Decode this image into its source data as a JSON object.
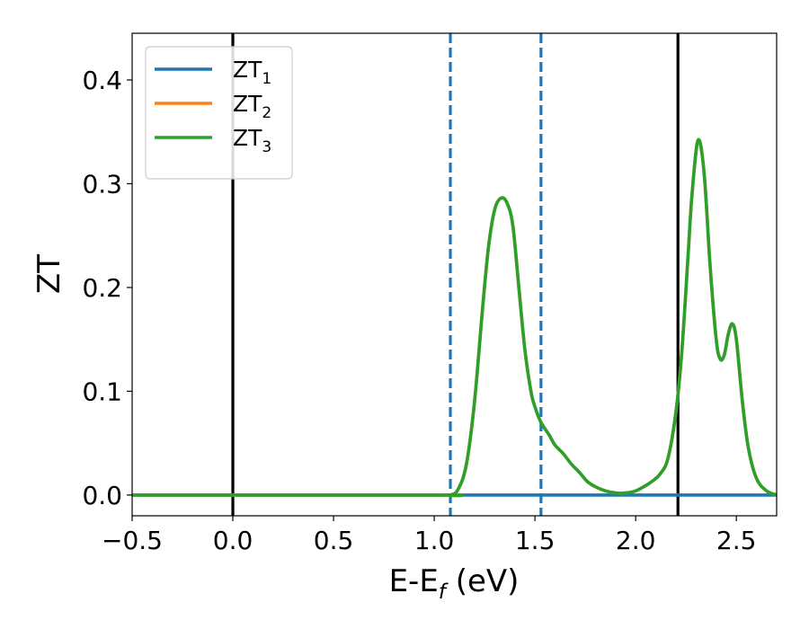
{
  "chart_data": {
    "type": "line",
    "title": "",
    "xlabel_main": "E-E",
    "xlabel_sub": "f",
    "xlabel_unit": " (eV)",
    "ylabel": "ZT",
    "xlim": [
      -0.5,
      2.7
    ],
    "ylim": [
      -0.02,
      0.445
    ],
    "xticks": [
      -0.5,
      0.0,
      0.5,
      1.0,
      1.5,
      2.0,
      2.5
    ],
    "xtick_labels": [
      "−0.5",
      "0.0",
      "0.5",
      "1.0",
      "1.5",
      "2.0",
      "2.5"
    ],
    "yticks": [
      0.0,
      0.1,
      0.2,
      0.3,
      0.4
    ],
    "ytick_labels": [
      "0.0",
      "0.1",
      "0.2",
      "0.3",
      "0.4"
    ],
    "grid": false,
    "legend_position": "top-left",
    "vlines": [
      {
        "x": 0.0,
        "style": "solid",
        "color": "#000000"
      },
      {
        "x": 2.21,
        "style": "solid",
        "color": "#000000"
      },
      {
        "x": 1.08,
        "style": "dashed",
        "color": "#1f77b4"
      },
      {
        "x": 1.53,
        "style": "dashed",
        "color": "#1f77b4"
      }
    ],
    "series": [
      {
        "name": "ZT",
        "sub": "1",
        "color": "#1f77b4",
        "x": [
          -0.5,
          2.7
        ],
        "y": [
          0.0,
          0.0
        ]
      },
      {
        "name": "ZT",
        "sub": "2",
        "color": "#ff7f0e",
        "x": [
          -0.5,
          1.0,
          1.08,
          1.12,
          1.16,
          1.2,
          1.24,
          1.27,
          1.3,
          1.33,
          1.36,
          1.39,
          1.42,
          1.45,
          1.48,
          1.5,
          1.53,
          1.57,
          1.6,
          1.64,
          1.68,
          1.72,
          1.76,
          1.8,
          1.85,
          1.9,
          1.95,
          2.0,
          2.04,
          2.08,
          2.12,
          2.16,
          2.2,
          2.23,
          2.26,
          2.28,
          2.31,
          2.34,
          2.37,
          2.4,
          2.42,
          2.44,
          2.46,
          2.48,
          2.5,
          2.53,
          2.56,
          2.6,
          2.65,
          2.7
        ],
        "y": [
          0.0,
          0.0,
          0.0,
          0.006,
          0.03,
          0.09,
          0.18,
          0.24,
          0.275,
          0.286,
          0.282,
          0.26,
          0.2,
          0.14,
          0.1,
          0.085,
          0.07,
          0.058,
          0.048,
          0.04,
          0.03,
          0.022,
          0.013,
          0.008,
          0.004,
          0.002,
          0.002,
          0.004,
          0.008,
          0.013,
          0.02,
          0.035,
          0.08,
          0.14,
          0.23,
          0.29,
          0.342,
          0.31,
          0.22,
          0.15,
          0.131,
          0.135,
          0.155,
          0.165,
          0.15,
          0.09,
          0.045,
          0.016,
          0.004,
          0.0
        ]
      },
      {
        "name": "ZT",
        "sub": "3",
        "color": "#2ca02c",
        "x": [
          -0.5,
          1.0,
          1.08,
          1.12,
          1.16,
          1.2,
          1.24,
          1.27,
          1.3,
          1.33,
          1.36,
          1.39,
          1.42,
          1.45,
          1.48,
          1.5,
          1.53,
          1.57,
          1.6,
          1.64,
          1.68,
          1.72,
          1.76,
          1.8,
          1.85,
          1.9,
          1.95,
          2.0,
          2.04,
          2.08,
          2.12,
          2.16,
          2.2,
          2.23,
          2.26,
          2.28,
          2.31,
          2.34,
          2.37,
          2.4,
          2.42,
          2.44,
          2.46,
          2.48,
          2.5,
          2.53,
          2.56,
          2.6,
          2.65,
          2.7
        ],
        "y": [
          0.0,
          0.0,
          0.0,
          0.006,
          0.03,
          0.09,
          0.18,
          0.24,
          0.275,
          0.286,
          0.282,
          0.26,
          0.2,
          0.14,
          0.1,
          0.085,
          0.07,
          0.058,
          0.048,
          0.04,
          0.03,
          0.022,
          0.013,
          0.008,
          0.004,
          0.002,
          0.002,
          0.004,
          0.008,
          0.013,
          0.02,
          0.035,
          0.08,
          0.14,
          0.23,
          0.29,
          0.342,
          0.31,
          0.22,
          0.15,
          0.131,
          0.135,
          0.155,
          0.165,
          0.15,
          0.09,
          0.045,
          0.016,
          0.004,
          0.0
        ]
      }
    ]
  }
}
